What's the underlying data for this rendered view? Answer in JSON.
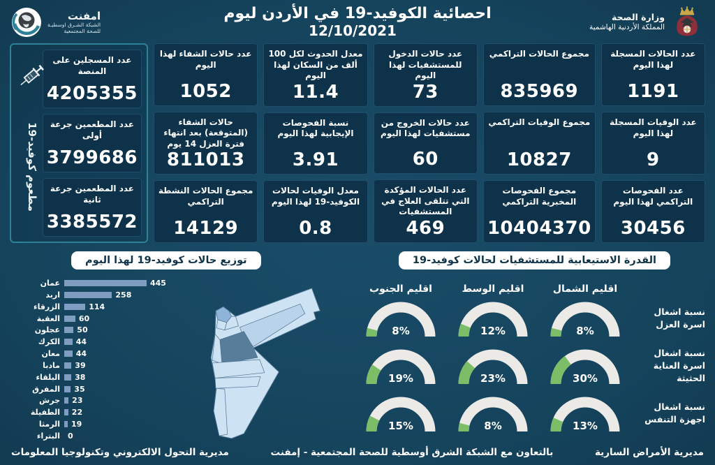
{
  "header": {
    "title": "احصائية الكوفيد-19 في الأردن ليوم",
    "date": "12/10/2021",
    "emphnet": {
      "name": "امفنت",
      "sub1": "الشبكة الشـرق اوسطيـة",
      "sub2": "للصحة المجتمعية"
    },
    "moh": {
      "line1": "وزارة الصحة",
      "line2": "المملكة الأردنية الهاشمية"
    }
  },
  "stats": {
    "columns": [
      [
        {
          "label": "عدد الحالات المسجلة لهذا اليوم",
          "value": "1191"
        },
        {
          "label": "عدد الوفيات المسجلة لهذا اليوم",
          "value": "9"
        },
        {
          "label": "عدد الفحوصات التراكمي لهذا اليوم",
          "value": "30456"
        }
      ],
      [
        {
          "label": "مجموع الحالات التراكمي",
          "value": "835969"
        },
        {
          "label": "مجموع الوفيات التراكمي",
          "value": "10827"
        },
        {
          "label": "مجموع الفحوصات المخبرية التراكمي",
          "value": "10404370"
        }
      ],
      [
        {
          "label": "عدد حالات الدخول للمستشفيات لهذا اليوم",
          "value": "73"
        },
        {
          "label": "عدد حالات الخروج من مستشفيات لهذا اليوم",
          "value": "60"
        },
        {
          "label": "عدد الحالات المؤكدة التي تتلقى العلاج في المستشفيات",
          "value": "469"
        }
      ],
      [
        {
          "label": "معدل الحدوث لكل 100 ألف من السكان لهذا اليوم",
          "value": "11.4"
        },
        {
          "label": "نسبة الفحوصات الإيجابية لهذا اليوم",
          "value": "3.91"
        },
        {
          "label": "معدل الوفيات لحالات الكوفيد-19 لهذا اليوم",
          "value": "0.8"
        }
      ],
      [
        {
          "label": "عدد حالات الشفاء لهذا اليوم",
          "value": "1052"
        },
        {
          "label": "حالات الشفاء (المتوقعة) بعد انتهاء فترة العزل 14 يوم",
          "value": "811013"
        },
        {
          "label": "مجموع الحالات النشطة التراكمي",
          "value": "14129"
        }
      ]
    ]
  },
  "vaccine_panel": {
    "vertical_label": "مطعوم كوفيد-19",
    "cards": [
      {
        "label": "عدد المسجلين على المنصة",
        "value": "4205355"
      },
      {
        "label": "عدد المطعمين جرعة أولى",
        "value": "3799686"
      },
      {
        "label": "عدد المطعمين جرعة ثانية",
        "value": "3385572"
      }
    ]
  },
  "chart_data": [
    {
      "type": "bar",
      "orientation": "horizontal",
      "title": "توزيع حالات كوفيد-19 لهذا اليوم",
      "categories": [
        "عمان",
        "اربد",
        "الزرقاء",
        "العقبة",
        "عجلون",
        "الكرك",
        "معان",
        "مادبا",
        "البلقاء",
        "المفرق",
        "جرش",
        "الطفيلة",
        "الرمثا",
        "البتراء"
      ],
      "values": [
        445,
        258,
        114,
        60,
        50,
        44,
        44,
        39,
        38,
        35,
        23,
        22,
        19,
        0
      ],
      "xlim": [
        0,
        445
      ],
      "bar_color": "#7e9dc1"
    },
    {
      "type": "gauge-grid",
      "title": "القدرة الاستيعابية للمستشفيات لحالات كوفيد-19",
      "columns": [
        "اقليم الشمال",
        "اقليم الوسط",
        "اقليم الجنوب"
      ],
      "rows": [
        {
          "label": "نسبة اشغال اسرة العزل",
          "values": [
            8,
            12,
            8
          ]
        },
        {
          "label": "نسبة اشغال اسرة العناية الحثيثة",
          "values": [
            30,
            23,
            19
          ]
        },
        {
          "label": "نسبة اشغال اجهزة التنفس",
          "values": [
            13,
            8,
            15
          ]
        }
      ],
      "unit": "%",
      "range": [
        0,
        100
      ],
      "track_color": "#eceae6",
      "fill_color": "#7cbe68"
    }
  ],
  "footer": {
    "right": "مديرية الأمراض السارية",
    "center": "بالتعاون مع الشبكة الشرق أوسطية للصحة المجتمعية - إمفنت",
    "left": "مديرية التحول الالكتروني وتكنولوجيا المعلومات"
  },
  "colors": {
    "background": "#15435c",
    "card_bg": "#0d3249",
    "accent_teal": "#2e8196",
    "bar": "#7e9dc1",
    "gauge_track": "#eceae6",
    "gauge_fill": "#7cbe68",
    "banner_bg": "#ffffff",
    "banner_text": "#0f3349",
    "map_light": "#cde3f4",
    "map_medium": "#8fb4d9",
    "map_tint": "#b9d3ea",
    "map_dark": "#587d9b"
  }
}
